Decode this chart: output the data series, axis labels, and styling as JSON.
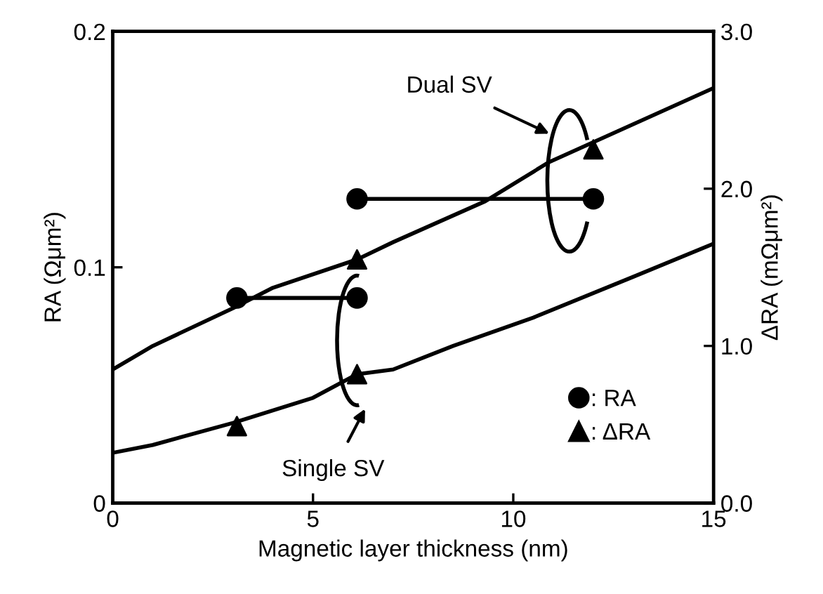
{
  "chart_data": {
    "type": "line",
    "xlabel": "Magnetic layer thickness (nm)",
    "ylabel": "RA (Ωμm²)",
    "y2label": "ΔRA (mΩμm²)",
    "xlim": [
      0,
      15
    ],
    "xticks": [
      0,
      5,
      10,
      15
    ],
    "ylim": [
      0,
      0.2
    ],
    "yticks": [
      {
        "value": 0,
        "label": "0"
      },
      0.1,
      0.2
    ],
    "y2lim": [
      0,
      3.0
    ],
    "y2ticks": [
      {
        "value": 0,
        "label": "0.0"
      },
      {
        "value": 1,
        "label": "1.0"
      },
      {
        "value": 2,
        "label": "2.0"
      },
      {
        "value": 3,
        "label": "3.0"
      }
    ],
    "grid": false,
    "legend": "bottom right",
    "annotations": [
      "Dual SV",
      "Single SV"
    ],
    "series": [
      {
        "name": ": RA",
        "marker": "circle",
        "color": "#000000",
        "x": [
          3.1,
          6.1
        ],
        "values": [
          0.087,
          0.087
        ]
      },
      {
        "marker": "circle",
        "color": "#000000",
        "x": [
          6.1,
          12.0
        ],
        "values": [
          0.129,
          0.129
        ]
      },
      {
        "type": "scatter",
        "name": ": ΔRA",
        "marker": "triangle",
        "axis": "y2",
        "color": "#000000",
        "x": [
          3.1,
          6.1
        ],
        "values": [
          0.49,
          0.82
        ]
      },
      {
        "type": "scatter",
        "marker": "triangle",
        "axis": "y2",
        "color": "#000000",
        "x": [
          6.1,
          12.0
        ],
        "values": [
          1.55,
          2.25
        ]
      },
      {
        "marker": "none",
        "axis": "y2",
        "color": "#000000",
        "x": [
          0,
          1,
          3,
          4,
          6.1,
          7,
          9.3,
          10.9,
          15
        ],
        "values": [
          0.85,
          1.0,
          1.24,
          1.37,
          1.55,
          1.66,
          1.92,
          2.17,
          2.64
        ]
      },
      {
        "marker": "none",
        "axis": "y2",
        "color": "#000000",
        "x": [
          0,
          1,
          3,
          5,
          6.1,
          7,
          8.5,
          10.5,
          13,
          15
        ],
        "values": [
          0.32,
          0.37,
          0.51,
          0.67,
          0.82,
          0.85,
          1.0,
          1.18,
          1.44,
          1.65
        ]
      }
    ]
  }
}
